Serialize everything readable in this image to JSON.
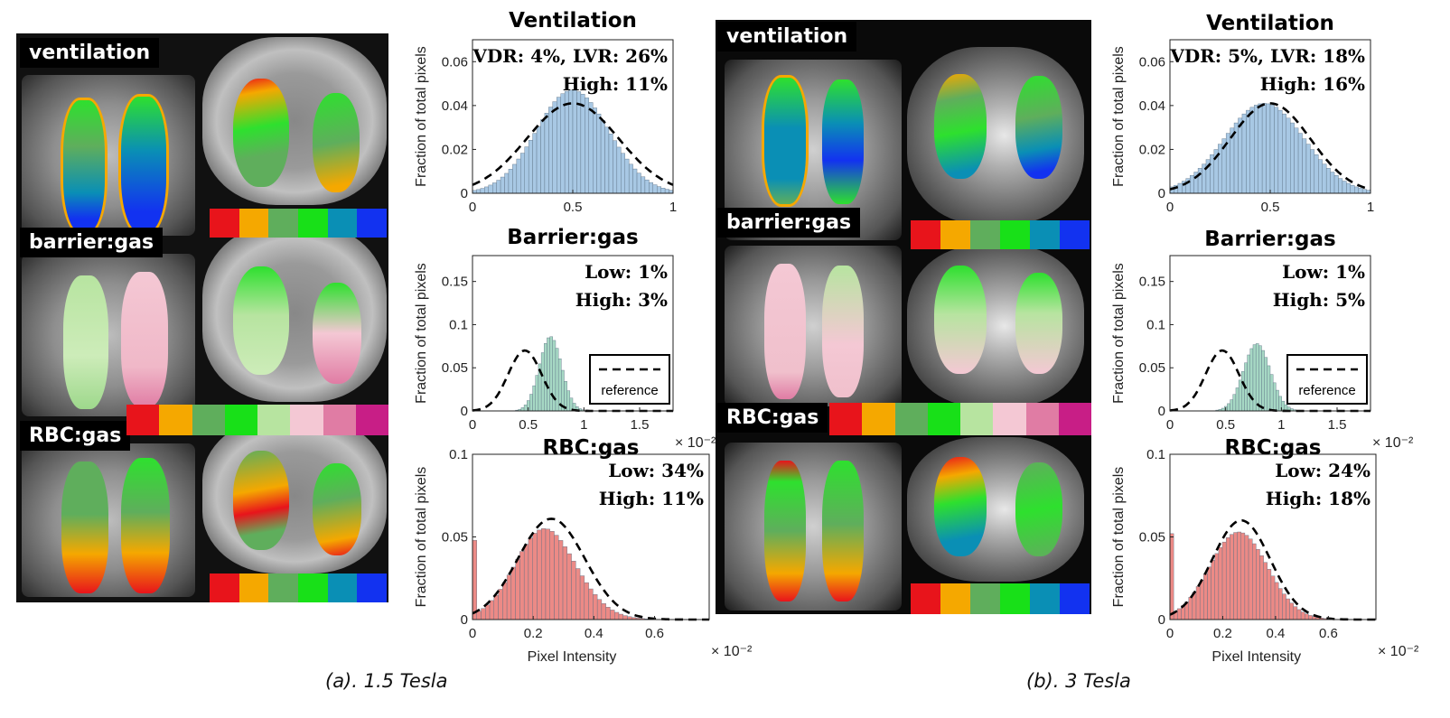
{
  "panels": [
    {
      "caption": "(a). 1.5 Tesla",
      "image_labels": {
        "ventilation": "ventilation",
        "barrier": "barrier:gas",
        "rbc": "RBC:gas"
      }
    },
    {
      "caption": "(b). 3 Tesla",
      "image_labels": {
        "ventilation": "ventilation",
        "barrier": "barrier:gas",
        "rbc": "RBC:gas"
      }
    }
  ],
  "colorbars": {
    "six": [
      "#e8141b",
      "#f5a800",
      "#5fae5c",
      "#18e018",
      "#0a8fb5",
      "#1232f0"
    ],
    "eight": [
      "#e8141b",
      "#f5a800",
      "#5fae5c",
      "#18e018",
      "#b7e4a0",
      "#f4c8d4",
      "#e07ca4",
      "#c81e86"
    ]
  },
  "axes_common": {
    "ylabel": "Fraction of total pixels",
    "xlabel": "Pixel Intensity",
    "exponent": "× 10⁻²",
    "legend_label": "reference"
  },
  "chart_data": [
    {
      "type": "bar",
      "id": "a-ventilation",
      "title": "Ventilation",
      "stats": [
        "VDR: 4%, LVR: 26%",
        "High: 11%"
      ],
      "xlim": [
        0,
        1
      ],
      "ylim": [
        0,
        0.07
      ],
      "xticks": [
        0,
        0.5,
        1
      ],
      "xtick_labels": [
        "0",
        "0.5",
        "1"
      ],
      "yticks": [
        0,
        0.02,
        0.04,
        0.06
      ],
      "ytick_labels": [
        "0",
        "0.02",
        "0.04",
        "0.06"
      ],
      "bar_color": "#a8c8e4",
      "reference": {
        "mean": 0.5,
        "sd": 0.23,
        "peak": 0.041
      },
      "dist": {
        "mean": 0.42,
        "sd": 0.2,
        "peak": 0.047,
        "skew": 0.6
      },
      "bins": 50
    },
    {
      "type": "bar",
      "id": "a-barrier",
      "title": "Barrier:gas",
      "stats": [
        "Low: 1%",
        "High: 3%"
      ],
      "xlim": [
        0,
        1.8
      ],
      "ylim": [
        0,
        0.18
      ],
      "xticks": [
        0,
        0.5,
        1,
        1.5
      ],
      "xtick_labels": [
        "0",
        "0.5",
        "1",
        "1.5"
      ],
      "yticks": [
        0,
        0.05,
        0.1,
        0.15
      ],
      "ytick_labels": [
        "0",
        "0.05",
        "0.1",
        "0.15"
      ],
      "show_exponent": true,
      "show_legend": true,
      "bar_color": "#a6d8c4",
      "reference": {
        "mean": 0.47,
        "sd": 0.15,
        "peak": 0.07
      },
      "dist": {
        "mean": 0.7,
        "sd": 0.1,
        "peak": 0.086,
        "skew": 0
      },
      "bins": 70
    },
    {
      "type": "bar",
      "id": "a-rbc",
      "title": "RBC:gas",
      "stats": [
        "Low: 34%",
        "High: 11%"
      ],
      "xlim": [
        0,
        0.78
      ],
      "ylim": [
        0,
        0.1
      ],
      "xticks": [
        0,
        0.2,
        0.4,
        0.6
      ],
      "xtick_labels": [
        "0",
        "0.2",
        "0.4",
        "0.6"
      ],
      "yticks": [
        0,
        0.05,
        0.1
      ],
      "ytick_labels": [
        "0",
        "0.05",
        "0.1"
      ],
      "show_exponent": true,
      "show_xlabel": true,
      "bar_color": "#ec8a86",
      "reference": {
        "mean": 0.26,
        "sd": 0.11,
        "peak": 0.061
      },
      "dist": {
        "mean": 0.18,
        "sd": 0.12,
        "peak": 0.055,
        "skew": 0.9
      },
      "first_bin": 0.048,
      "bins": 55
    },
    {
      "type": "bar",
      "id": "b-ventilation",
      "title": "Ventilation",
      "stats": [
        "VDR: 5%, LVR: 18%",
        "High: 16%"
      ],
      "xlim": [
        0,
        1
      ],
      "ylim": [
        0,
        0.07
      ],
      "xticks": [
        0,
        0.5,
        1
      ],
      "xtick_labels": [
        "0",
        "0.5",
        "1"
      ],
      "yticks": [
        0,
        0.02,
        0.04,
        0.06
      ],
      "ytick_labels": [
        "0",
        "0.02",
        "0.04",
        "0.06"
      ],
      "bar_color": "#a8c8e4",
      "reference": {
        "mean": 0.5,
        "sd": 0.2,
        "peak": 0.041
      },
      "dist": {
        "mean": 0.47,
        "sd": 0.2,
        "peak": 0.041,
        "skew": 0
      },
      "bins": 50
    },
    {
      "type": "bar",
      "id": "b-barrier",
      "title": "Barrier:gas",
      "stats": [
        "Low: 1%",
        "High: 5%"
      ],
      "xlim": [
        0,
        1.8
      ],
      "ylim": [
        0,
        0.18
      ],
      "xticks": [
        0,
        0.5,
        1,
        1.5
      ],
      "xtick_labels": [
        "0",
        "0.5",
        "1",
        "1.5"
      ],
      "yticks": [
        0,
        0.05,
        0.1,
        0.15
      ],
      "ytick_labels": [
        "0",
        "0.05",
        "0.1",
        "0.15"
      ],
      "show_exponent": true,
      "show_legend": true,
      "bar_color": "#a6d8c4",
      "reference": {
        "mean": 0.47,
        "sd": 0.15,
        "peak": 0.07
      },
      "dist": {
        "mean": 0.78,
        "sd": 0.12,
        "peak": 0.078,
        "skew": 0
      },
      "bins": 70
    },
    {
      "type": "bar",
      "id": "b-rbc",
      "title": "RBC:gas",
      "stats": [
        "Low: 24%",
        "High: 18%"
      ],
      "xlim": [
        0,
        0.78
      ],
      "ylim": [
        0,
        0.1
      ],
      "xticks": [
        0,
        0.2,
        0.4,
        0.6
      ],
      "xtick_labels": [
        "0",
        "0.2",
        "0.4",
        "0.6"
      ],
      "yticks": [
        0,
        0.05,
        0.1
      ],
      "ytick_labels": [
        "0",
        "0.05",
        "0.1"
      ],
      "show_exponent": true,
      "show_xlabel": true,
      "bar_color": "#ec8a86",
      "reference": {
        "mean": 0.27,
        "sd": 0.11,
        "peak": 0.06
      },
      "dist": {
        "mean": 0.26,
        "sd": 0.11,
        "peak": 0.053,
        "skew": 0
      },
      "first_bin": 0.052,
      "bins": 55
    }
  ]
}
